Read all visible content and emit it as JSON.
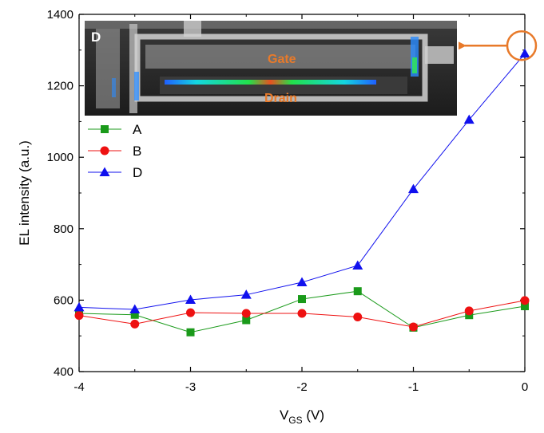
{
  "chart_data": {
    "type": "line",
    "x": [
      -4,
      -3.5,
      -3,
      -2.5,
      -2,
      -1.5,
      -1,
      -0.5,
      0
    ],
    "series": [
      {
        "name": "A",
        "values": [
          563,
          559,
          510,
          544,
          603,
          625,
          523,
          558,
          583
        ],
        "color": "#1a9a1a",
        "marker": "square"
      },
      {
        "name": "B",
        "values": [
          557,
          533,
          565,
          563,
          563,
          553,
          525,
          570,
          599
        ],
        "color": "#ee1111",
        "marker": "circle"
      },
      {
        "name": "D",
        "values": [
          580,
          574,
          601,
          615,
          650,
          697,
          911,
          1105,
          1290
        ],
        "color": "#1010ee",
        "marker": "triangle"
      }
    ],
    "xlim": [
      -4,
      0
    ],
    "ylim": [
      400,
      1400
    ],
    "xticks": [
      -4,
      -3,
      -2,
      -1,
      0
    ],
    "xtick_labels": [
      "-4",
      "-3",
      "-2",
      "-1",
      "0"
    ],
    "yticks": [
      400,
      600,
      800,
      1000,
      1200,
      1400
    ],
    "ytick_labels": [
      "400",
      "600",
      "800",
      "1000",
      "1200",
      "1400"
    ],
    "ylabel": "EL intensity (a.u.)",
    "xlabel": {
      "main": "V",
      "subscript": "GS",
      "unit": " (V)"
    },
    "legend_position": "upper-left",
    "grid": false,
    "inset": {
      "corner_label": "D",
      "gate_label": "Gate",
      "drain_label": "Drain",
      "label_color": "#e87a2a"
    },
    "annotation": {
      "highlight_series": "D",
      "highlight_x": 0,
      "color": "#e87a2a"
    }
  }
}
